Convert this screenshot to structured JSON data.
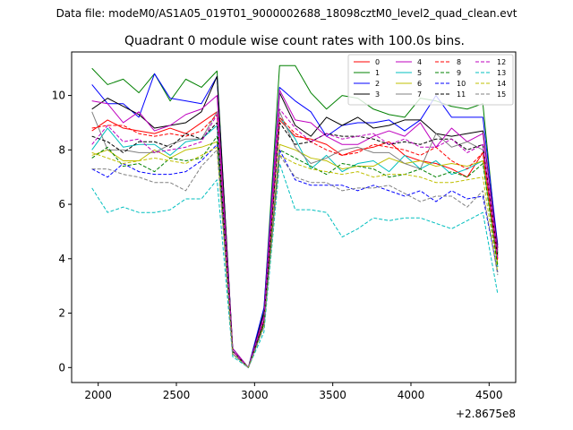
{
  "chart_data": {
    "type": "line",
    "suptitle": "Data file: modeM0/AS1A05_019T01_9000002688_18098cztM0_level2_quad_clean.evt",
    "title": "Quadrant 0 module wise count rates with 100.0s bins.",
    "xlabel": "",
    "ylabel": "",
    "x_offset_label": "+2.8675e8",
    "xlim": [
      1830,
      4670
    ],
    "ylim": [
      -0.55,
      11.6
    ],
    "xticks": [
      2000,
      2500,
      3000,
      3500,
      4000,
      4500
    ],
    "yticks": [
      0,
      2,
      4,
      6,
      8,
      10
    ],
    "grid": false,
    "legend": {
      "placement": "top-right",
      "columns": 4
    },
    "x": [
      1960,
      2060,
      2160,
      2260,
      2360,
      2460,
      2560,
      2660,
      2760,
      2860,
      2960,
      3060,
      3160,
      3260,
      3360,
      3460,
      3560,
      3660,
      3760,
      3860,
      3960,
      4060,
      4160,
      4260,
      4360,
      4460,
      4555
    ],
    "series": [
      {
        "name": "0",
        "color": "#ff0000",
        "dash": "solid",
        "values": [
          8.7,
          9.1,
          8.8,
          8.7,
          8.6,
          8.8,
          8.6,
          9.0,
          9.4,
          0.6,
          0.0,
          1.6,
          9.1,
          8.5,
          8.4,
          8.2,
          7.8,
          8.0,
          8.1,
          8.3,
          7.8,
          7.6,
          7.5,
          7.3,
          7.0,
          7.9,
          4.0
        ]
      },
      {
        "name": "1",
        "color": "#008000",
        "dash": "solid",
        "values": [
          11.0,
          10.4,
          10.6,
          10.1,
          10.8,
          9.8,
          10.6,
          10.3,
          10.9,
          0.6,
          0.0,
          2.1,
          11.1,
          11.1,
          10.1,
          9.5,
          10.0,
          9.9,
          9.5,
          9.3,
          9.2,
          9.9,
          9.8,
          9.6,
          9.5,
          9.7,
          4.2
        ]
      },
      {
        "name": "2",
        "color": "#0000ff",
        "dash": "solid",
        "values": [
          10.4,
          9.7,
          9.7,
          9.2,
          10.8,
          9.9,
          9.8,
          9.7,
          10.7,
          0.7,
          0.0,
          2.2,
          10.3,
          9.8,
          9.4,
          8.5,
          8.9,
          9.0,
          9.0,
          9.1,
          8.7,
          9.1,
          10.0,
          9.2,
          9.2,
          9.2,
          4.5
        ]
      },
      {
        "name": "3",
        "color": "#000000",
        "dash": "solid",
        "values": [
          9.5,
          9.9,
          9.6,
          9.3,
          8.8,
          8.9,
          9.0,
          9.4,
          10.7,
          0.7,
          0.0,
          2.0,
          10.1,
          8.9,
          8.5,
          9.2,
          8.9,
          9.2,
          8.8,
          8.9,
          9.1,
          9.1,
          8.6,
          8.5,
          8.6,
          8.7,
          4.4
        ]
      },
      {
        "name": "4",
        "color": "#bf00bf",
        "dash": "solid",
        "values": [
          9.8,
          9.7,
          9.0,
          9.4,
          8.7,
          8.9,
          9.3,
          9.5,
          10.0,
          0.7,
          0.0,
          1.9,
          10.2,
          9.1,
          9.0,
          8.5,
          8.2,
          8.2,
          8.5,
          8.7,
          8.5,
          9.0,
          8.1,
          8.8,
          8.3,
          8.6,
          4.3
        ]
      },
      {
        "name": "5",
        "color": "#00bfbf",
        "dash": "solid",
        "values": [
          8.0,
          8.8,
          8.1,
          8.2,
          8.2,
          7.8,
          8.3,
          8.4,
          8.9,
          0.6,
          0.0,
          1.7,
          9.2,
          8.4,
          7.3,
          7.8,
          7.2,
          7.5,
          7.6,
          7.2,
          7.8,
          7.3,
          7.6,
          7.1,
          7.3,
          7.6,
          3.7
        ]
      },
      {
        "name": "6",
        "color": "#bfbf00",
        "dash": "solid",
        "values": [
          7.8,
          8.0,
          7.6,
          7.6,
          8.0,
          7.7,
          8.0,
          8.1,
          8.3,
          0.6,
          0.0,
          1.6,
          8.2,
          8.0,
          7.7,
          7.6,
          7.3,
          7.4,
          7.4,
          7.7,
          7.5,
          7.6,
          7.4,
          7.5,
          7.4,
          7.6,
          3.8
        ]
      },
      {
        "name": "7",
        "color": "#808080",
        "dash": "solid",
        "values": [
          9.4,
          8.0,
          8.0,
          7.9,
          7.9,
          8.2,
          8.4,
          8.4,
          9.4,
          0.6,
          0.0,
          1.7,
          9.4,
          8.1,
          7.5,
          7.7,
          8.0,
          8.1,
          7.9,
          7.9,
          7.5,
          7.3,
          8.6,
          8.1,
          8.3,
          8.0,
          4.1
        ]
      },
      {
        "name": "8",
        "color": "#ff0000",
        "dash": "dashed",
        "values": [
          8.8,
          8.9,
          8.9,
          8.6,
          8.5,
          8.6,
          8.5,
          8.7,
          9.3,
          0.6,
          0.0,
          1.7,
          9.2,
          8.6,
          8.3,
          8.0,
          7.8,
          7.9,
          8.2,
          8.1,
          8.0,
          7.8,
          8.1,
          7.6,
          7.3,
          7.9,
          3.9
        ]
      },
      {
        "name": "9",
        "color": "#008000",
        "dash": "dashed",
        "values": [
          7.7,
          8.1,
          7.4,
          7.5,
          7.2,
          7.7,
          7.6,
          7.7,
          8.5,
          0.5,
          0.0,
          1.6,
          8.0,
          7.7,
          7.4,
          7.1,
          7.5,
          7.4,
          7.3,
          7.0,
          7.1,
          7.3,
          7.0,
          7.2,
          7.0,
          7.5,
          3.7
        ]
      },
      {
        "name": "10",
        "color": "#0000ff",
        "dash": "dashed",
        "values": [
          7.3,
          7.0,
          7.5,
          7.2,
          7.1,
          7.1,
          7.2,
          7.6,
          8.2,
          0.5,
          0.0,
          1.5,
          8.0,
          6.9,
          6.7,
          6.7,
          6.7,
          6.5,
          6.7,
          6.5,
          6.3,
          6.5,
          6.1,
          6.5,
          6.2,
          6.3,
          3.5
        ]
      },
      {
        "name": "11",
        "color": "#000000",
        "dash": "dashed",
        "values": [
          8.5,
          8.3,
          7.9,
          8.3,
          8.3,
          8.1,
          8.6,
          8.4,
          9.0,
          0.6,
          0.0,
          1.7,
          9.0,
          8.2,
          8.3,
          8.6,
          8.5,
          8.5,
          8.4,
          8.2,
          8.3,
          8.2,
          8.4,
          8.4,
          8.0,
          8.2,
          4.1
        ]
      },
      {
        "name": "12",
        "color": "#bf00bf",
        "dash": "dashed",
        "values": [
          8.2,
          8.9,
          8.3,
          8.4,
          7.9,
          8.0,
          8.1,
          8.3,
          9.3,
          0.6,
          0.0,
          1.8,
          9.5,
          8.8,
          8.3,
          8.6,
          8.4,
          8.5,
          8.6,
          8.2,
          8.4,
          8.1,
          8.1,
          8.4,
          7.9,
          8.2,
          4.0
        ]
      },
      {
        "name": "13",
        "color": "#00bfbf",
        "dash": "dashed",
        "values": [
          6.6,
          5.7,
          5.9,
          5.7,
          5.7,
          5.8,
          6.2,
          6.2,
          6.9,
          0.4,
          0.0,
          1.3,
          7.5,
          5.8,
          5.8,
          5.7,
          4.8,
          5.1,
          5.5,
          5.4,
          5.5,
          5.5,
          5.3,
          5.1,
          5.4,
          5.7,
          2.7
        ]
      },
      {
        "name": "14",
        "color": "#bfbf00",
        "dash": "dashed",
        "values": [
          7.9,
          7.7,
          7.5,
          7.6,
          7.7,
          7.6,
          7.5,
          7.8,
          8.1,
          0.5,
          0.0,
          1.5,
          7.8,
          7.5,
          7.3,
          7.2,
          7.1,
          7.2,
          7.0,
          7.1,
          7.1,
          7.0,
          6.8,
          6.8,
          6.9,
          7.0,
          3.5
        ]
      },
      {
        "name": "15",
        "color": "#808080",
        "dash": "dashed",
        "values": [
          7.3,
          7.3,
          7.1,
          7.0,
          6.8,
          6.8,
          6.5,
          7.4,
          8.0,
          0.5,
          0.0,
          1.5,
          7.8,
          7.0,
          6.8,
          6.8,
          6.5,
          6.6,
          6.6,
          6.7,
          6.4,
          6.1,
          6.3,
          6.3,
          5.9,
          6.5,
          3.4
        ]
      }
    ]
  }
}
